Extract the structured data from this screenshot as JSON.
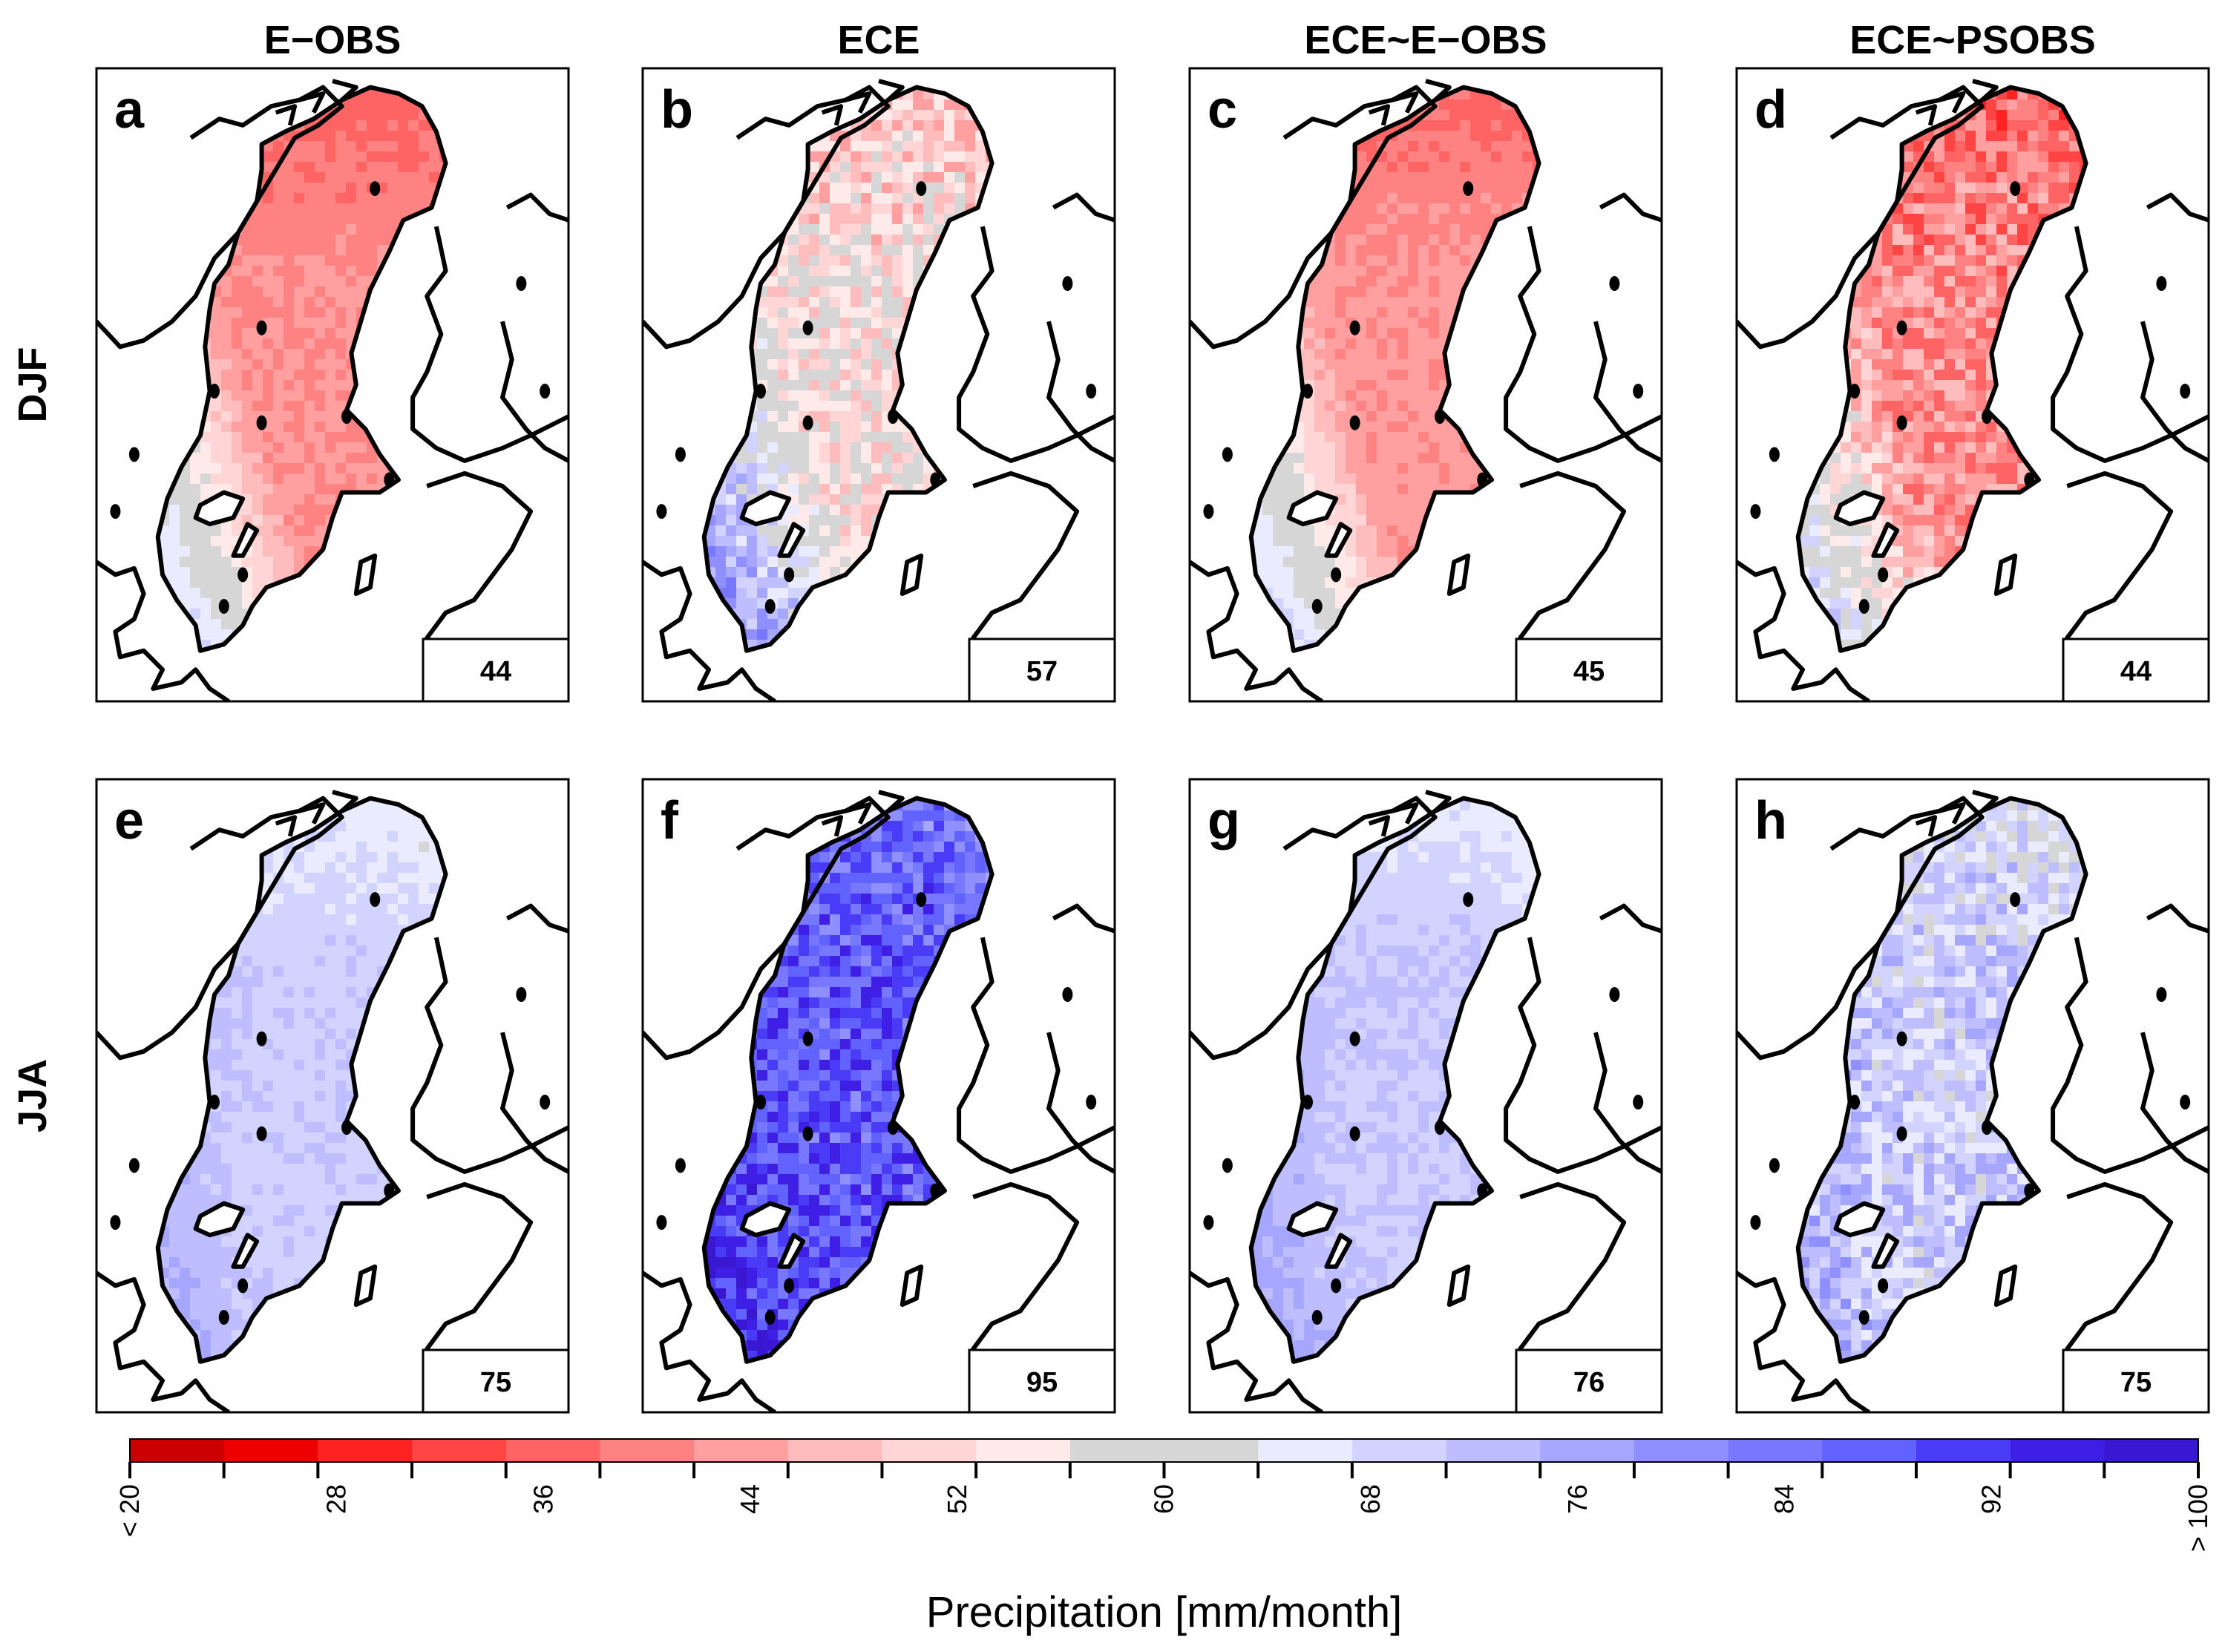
{
  "chart_data": {
    "type": "heatmap",
    "title": "",
    "columns": [
      "E−OBS",
      "ECE",
      "ECE~E−OBS",
      "ECE~PSOBS"
    ],
    "rows": [
      "DJF",
      "JJA"
    ],
    "panels": [
      {
        "label": "a",
        "row": "DJF",
        "column": "E−OBS",
        "mean": "44",
        "style": "smooth"
      },
      {
        "label": "b",
        "row": "DJF",
        "column": "ECE",
        "mean": "57",
        "style": "noisy"
      },
      {
        "label": "c",
        "row": "DJF",
        "column": "ECE~E−OBS",
        "mean": "45",
        "style": "smooth"
      },
      {
        "label": "d",
        "row": "DJF",
        "column": "ECE~PSOBS",
        "mean": "44",
        "style": "noisy"
      },
      {
        "label": "e",
        "row": "JJA",
        "column": "E−OBS",
        "mean": "75",
        "style": "smooth"
      },
      {
        "label": "f",
        "row": "JJA",
        "column": "ECE",
        "mean": "95",
        "style": "noisy"
      },
      {
        "label": "g",
        "row": "JJA",
        "column": "ECE~E−OBS",
        "mean": "76",
        "style": "smooth"
      },
      {
        "label": "h",
        "row": "JJA",
        "column": "ECE~PSOBS",
        "mean": "75",
        "style": "noisy"
      }
    ],
    "colorbar": {
      "label": "Precipitation [mm/month]",
      "min": 20,
      "max": 100,
      "step": 4,
      "tick_labels": [
        "< 20",
        "28",
        "36",
        "44",
        "52",
        "60",
        "68",
        "76",
        "84",
        "92",
        "> 100"
      ],
      "tick_values": [
        20,
        28,
        36,
        44,
        52,
        60,
        68,
        76,
        84,
        92,
        100
      ],
      "colors": [
        "#cc0000",
        "#ef0000",
        "#ff2222",
        "#ff4444",
        "#ff6464",
        "#ff8282",
        "#ff9f9f",
        "#ffbcbc",
        "#ffd5d5",
        "#ffeaea",
        "#d6d6d6",
        "#d6d6d6",
        "#ebebff",
        "#d3d3ff",
        "#bdbdff",
        "#a6a6ff",
        "#8f8fff",
        "#7878ff",
        "#6262ff",
        "#4a3cf6",
        "#3f1fe6",
        "#3a18d2"
      ]
    }
  }
}
